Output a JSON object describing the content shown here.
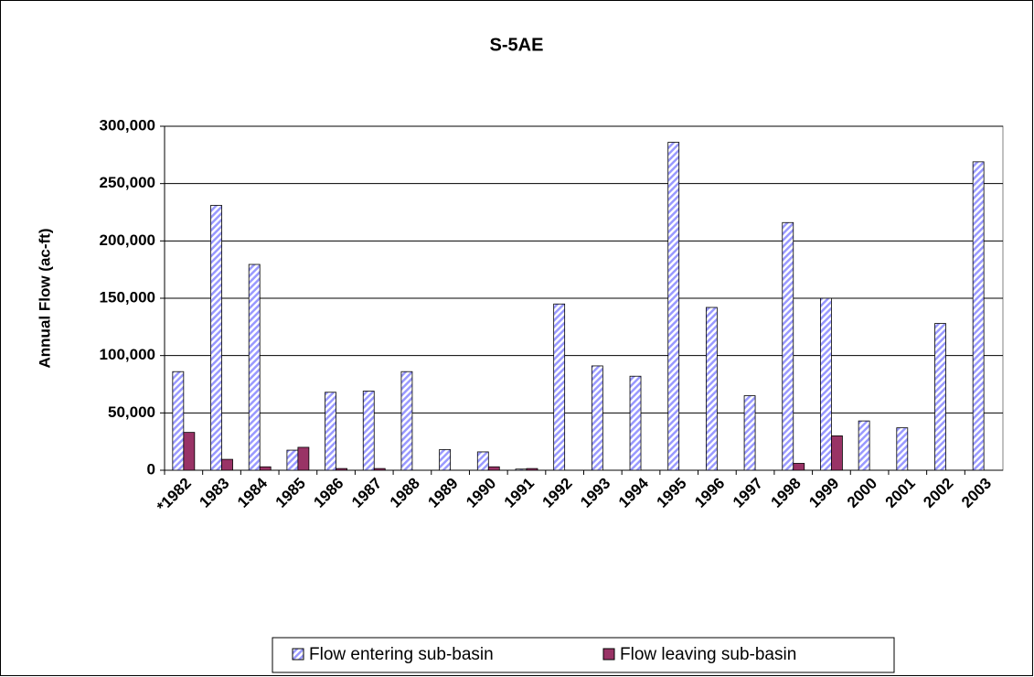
{
  "chart_data": {
    "type": "bar",
    "title": "S-5AE",
    "y_label": "Annual Flow (ac-ft)",
    "categories": [
      "*1982",
      "1983",
      "1984",
      "1985",
      "1986",
      "1987",
      "1988",
      "1989",
      "1990",
      "1991",
      "1992",
      "1993",
      "1994",
      "1995",
      "1996",
      "1997",
      "1998",
      "1999",
      "2000",
      "2001",
      "2002",
      "2003"
    ],
    "series": [
      {
        "name": "Flow entering sub-basin",
        "color": "#9999ff",
        "pattern": "hatch",
        "values": [
          86000,
          231000,
          179500,
          17500,
          68000,
          69000,
          86000,
          18000,
          16000,
          1000,
          145000,
          91000,
          82000,
          286000,
          142000,
          65000,
          216000,
          150000,
          43000,
          37000,
          128000,
          269000
        ]
      },
      {
        "name": "Flow leaving sub-basin",
        "color": "#993366",
        "values": [
          33000,
          9500,
          3000,
          20000,
          1500,
          1500,
          0,
          0,
          3000,
          1500,
          0,
          0,
          0,
          0,
          0,
          0,
          6000,
          30000,
          0,
          0,
          0,
          0
        ]
      }
    ],
    "ylim": [
      0,
      300000
    ],
    "yticks": [
      0,
      {
        "value": 50000,
        "label": "50,000"
      },
      {
        "value": 100000,
        "label": "100,000"
      },
      {
        "value": 150000,
        "label": "150,000"
      },
      {
        "value": 200000,
        "label": "200,000"
      },
      {
        "value": 250000,
        "label": "250,000"
      },
      {
        "value": 300000,
        "label": "300,000"
      }
    ],
    "grid": true,
    "legend": "bottom"
  }
}
